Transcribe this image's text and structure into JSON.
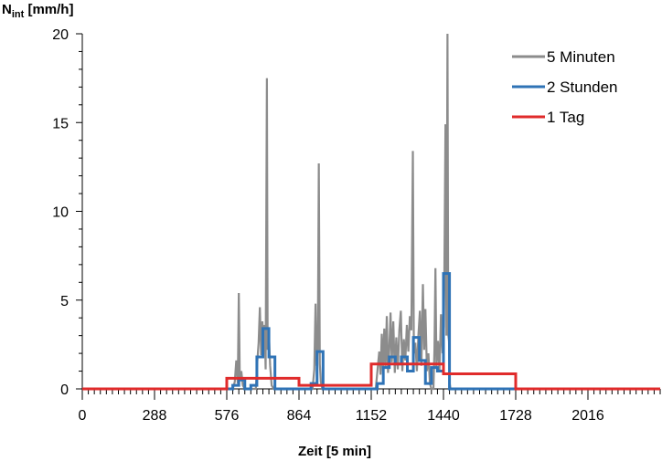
{
  "chart_data": {
    "type": "line",
    "title": "",
    "ylabel": {
      "main": "N",
      "sub": "int",
      "unit": " [mm/h]"
    },
    "xlabel": "Zeit [5 min]",
    "xlim": [
      0,
      2304
    ],
    "ylim": [
      0,
      20
    ],
    "x_ticks": [
      0,
      288,
      576,
      864,
      1152,
      1440,
      1728,
      2016
    ],
    "y_ticks": [
      0,
      5,
      10,
      15,
      20
    ],
    "grid": false,
    "legend_position": "top-right",
    "series": [
      {
        "name": "5 Minuten",
        "color": "#8c8c8c",
        "points": [
          [
            0,
            0
          ],
          [
            600,
            0
          ],
          [
            608,
            0.4
          ],
          [
            614,
            1.6
          ],
          [
            620,
            0.3
          ],
          [
            624,
            5.4
          ],
          [
            628,
            0.5
          ],
          [
            634,
            1.0
          ],
          [
            640,
            0.2
          ],
          [
            648,
            0
          ],
          [
            692,
            0
          ],
          [
            698,
            1.6
          ],
          [
            703,
            2.6
          ],
          [
            708,
            4.6
          ],
          [
            713,
            1.9
          ],
          [
            718,
            3.8
          ],
          [
            722,
            2.4
          ],
          [
            727,
            3.6
          ],
          [
            731,
            1.1
          ],
          [
            736,
            17.5
          ],
          [
            739,
            2.2
          ],
          [
            744,
            3.1
          ],
          [
            749,
            1.3
          ],
          [
            755,
            0.2
          ],
          [
            763,
            0
          ],
          [
            918,
            0
          ],
          [
            925,
            1.1
          ],
          [
            930,
            4.8
          ],
          [
            934,
            1.3
          ],
          [
            939,
            2.3
          ],
          [
            943,
            12.7
          ],
          [
            947,
            1.4
          ],
          [
            951,
            0.4
          ],
          [
            957,
            0
          ],
          [
            1170,
            0
          ],
          [
            1178,
            1.2
          ],
          [
            1184,
            2.1
          ],
          [
            1189,
            0.8
          ],
          [
            1194,
            3.1
          ],
          [
            1199,
            1.0
          ],
          [
            1204,
            3.4
          ],
          [
            1209,
            1.2
          ],
          [
            1214,
            4.1
          ],
          [
            1219,
            0.9
          ],
          [
            1224,
            2.2
          ],
          [
            1229,
            4.3
          ],
          [
            1234,
            1.5
          ],
          [
            1240,
            3.8
          ],
          [
            1246,
            0.9
          ],
          [
            1252,
            2.9
          ],
          [
            1258,
            1.1
          ],
          [
            1264,
            3.3
          ],
          [
            1270,
            4.4
          ],
          [
            1276,
            1.0
          ],
          [
            1282,
            2.8
          ],
          [
            1288,
            1.6
          ],
          [
            1294,
            3.6
          ],
          [
            1300,
            2.1
          ],
          [
            1306,
            4.1
          ],
          [
            1312,
            3.3
          ],
          [
            1318,
            13.4
          ],
          [
            1322,
            2.0
          ],
          [
            1328,
            2.6
          ],
          [
            1334,
            1.0
          ],
          [
            1340,
            3.0
          ],
          [
            1346,
            4.4
          ],
          [
            1352,
            1.3
          ],
          [
            1358,
            5.9
          ],
          [
            1363,
            2.2
          ],
          [
            1368,
            4.5
          ],
          [
            1374,
            1.0
          ],
          [
            1380,
            2.0
          ],
          [
            1386,
            0.3
          ],
          [
            1392,
            0
          ],
          [
            1400,
            0
          ],
          [
            1404,
            2.2
          ],
          [
            1408,
            6.8
          ],
          [
            1412,
            1.2
          ],
          [
            1418,
            2.7
          ],
          [
            1424,
            1.0
          ],
          [
            1430,
            4.2
          ],
          [
            1436,
            2.0
          ],
          [
            1442,
            3.5
          ],
          [
            1448,
            14.9
          ],
          [
            1452,
            3.0
          ],
          [
            1456,
            20.0
          ],
          [
            1459,
            3.1
          ],
          [
            1462,
            2.7
          ],
          [
            1465,
            0.3
          ],
          [
            1468,
            0
          ],
          [
            2304,
            0
          ]
        ]
      },
      {
        "name": "2 Stunden",
        "color": "#2f73b6",
        "points": [
          [
            0,
            0
          ],
          [
            600,
            0
          ],
          [
            600,
            0.2
          ],
          [
            624,
            0.2
          ],
          [
            624,
            0.5
          ],
          [
            648,
            0.5
          ],
          [
            648,
            0
          ],
          [
            672,
            0
          ],
          [
            672,
            0.2
          ],
          [
            696,
            0.2
          ],
          [
            696,
            1.8
          ],
          [
            720,
            1.8
          ],
          [
            720,
            3.4
          ],
          [
            744,
            3.4
          ],
          [
            744,
            1.8
          ],
          [
            768,
            1.8
          ],
          [
            768,
            0
          ],
          [
            912,
            0
          ],
          [
            912,
            0.3
          ],
          [
            936,
            0.3
          ],
          [
            936,
            2.1
          ],
          [
            960,
            2.1
          ],
          [
            960,
            0
          ],
          [
            1176,
            0
          ],
          [
            1176,
            0.3
          ],
          [
            1200,
            0.3
          ],
          [
            1200,
            1.2
          ],
          [
            1224,
            1.2
          ],
          [
            1224,
            1.8
          ],
          [
            1248,
            1.8
          ],
          [
            1248,
            1.4
          ],
          [
            1272,
            1.4
          ],
          [
            1272,
            1.8
          ],
          [
            1296,
            1.8
          ],
          [
            1296,
            1.0
          ],
          [
            1320,
            1.0
          ],
          [
            1320,
            2.9
          ],
          [
            1344,
            2.9
          ],
          [
            1344,
            1.6
          ],
          [
            1368,
            1.6
          ],
          [
            1368,
            0.3
          ],
          [
            1392,
            0.3
          ],
          [
            1392,
            1.2
          ],
          [
            1416,
            1.2
          ],
          [
            1416,
            1.0
          ],
          [
            1440,
            1.0
          ],
          [
            1440,
            6.5
          ],
          [
            1464,
            6.5
          ],
          [
            1464,
            0
          ],
          [
            2304,
            0
          ]
        ]
      },
      {
        "name": "1 Tag",
        "color": "#e02b2b",
        "points": [
          [
            0,
            0
          ],
          [
            576,
            0
          ],
          [
            576,
            0.6
          ],
          [
            864,
            0.6
          ],
          [
            864,
            0.2
          ],
          [
            1152,
            0.2
          ],
          [
            1152,
            1.4
          ],
          [
            1440,
            1.4
          ],
          [
            1440,
            0.85
          ],
          [
            1728,
            0.85
          ],
          [
            1728,
            0
          ],
          [
            2304,
            0
          ]
        ]
      }
    ]
  }
}
